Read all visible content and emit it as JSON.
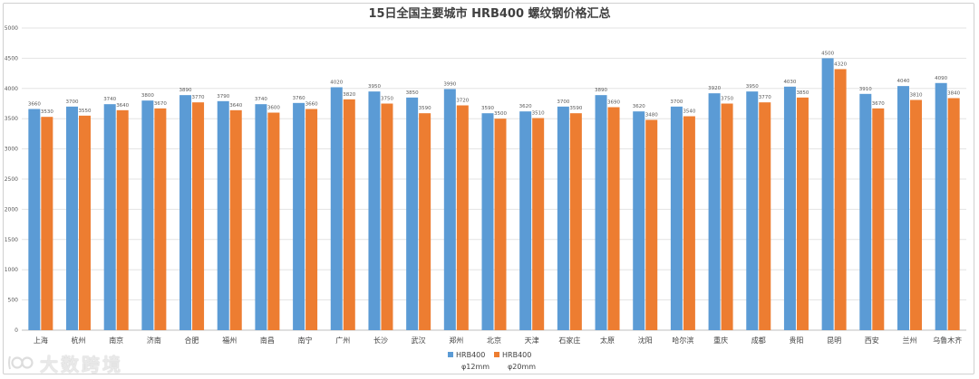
{
  "chart_data": {
    "type": "bar",
    "title": "15日全国主要城市 HRB400 螺纹钢价格汇总",
    "xlabel": "",
    "ylabel": "",
    "ylim": [
      0,
      5000
    ],
    "ytick_step": 500,
    "yticks": [
      "0",
      "500",
      "1000",
      "1500",
      "2000",
      "2500",
      "3000",
      "3500",
      "4000",
      "4500",
      "5000"
    ],
    "grid": true,
    "legend_position": "bottom",
    "categories": [
      "上海",
      "杭州",
      "南京",
      "济南",
      "合肥",
      "福州",
      "南昌",
      "南宁",
      "广州",
      "长沙",
      "武汉",
      "郑州",
      "北京",
      "天津",
      "石家庄",
      "太原",
      "沈阳",
      "哈尔滨",
      "重庆",
      "成都",
      "贵阳",
      "昆明",
      "西安",
      "兰州",
      "乌鲁木齐"
    ],
    "series": [
      {
        "name": "HRB400 φ12mm",
        "legend_line1": "HRB400",
        "legend_line2": "φ12mm",
        "color": "#5b9bd5",
        "values": [
          3660,
          3700,
          3740,
          3800,
          3890,
          3790,
          3740,
          3760,
          4020,
          3950,
          3850,
          3990,
          3590,
          3620,
          3700,
          3890,
          3620,
          3700,
          3920,
          3950,
          4030,
          4500,
          3910,
          4040,
          4090
        ]
      },
      {
        "name": "HRB400 φ20mm",
        "legend_line1": "HRB400",
        "legend_line2": "φ20mm",
        "color": "#ed7d31",
        "values": [
          3530,
          3550,
          3640,
          3670,
          3770,
          3640,
          3600,
          3660,
          3820,
          3750,
          3590,
          3720,
          3500,
          3510,
          3590,
          3690,
          3480,
          3540,
          3750,
          3770,
          3850,
          4320,
          3670,
          3810,
          3840
        ]
      }
    ]
  },
  "watermark": {
    "icon": "bigdata-logo-icon",
    "text": "大数跨境"
  }
}
